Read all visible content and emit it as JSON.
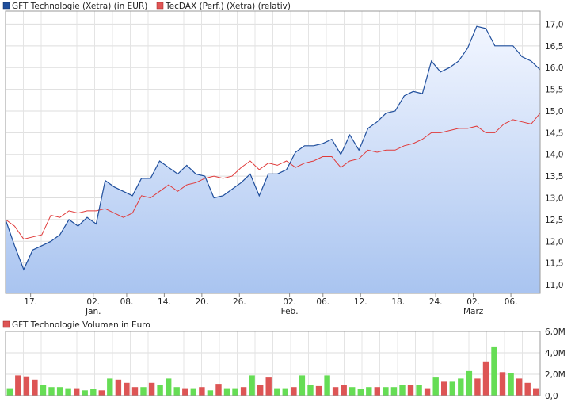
{
  "chart_data": [
    {
      "type": "line",
      "title": "",
      "legend_position": "top-left",
      "grid": true,
      "ylim": [
        10.8,
        17.3
      ],
      "yticks": [
        "11,0",
        "11,5",
        "12,0",
        "12,5",
        "13,0",
        "13,5",
        "14,0",
        "14,5",
        "15,0",
        "15,5",
        "16,0",
        "16,5",
        "17,0"
      ],
      "x_tick_labels": [
        "17.",
        "02.",
        "08.",
        "14.",
        "20.",
        "26.",
        "02.",
        "06.",
        "12.",
        "18.",
        "24.",
        "02.",
        "06."
      ],
      "month_labels": [
        "Jan.",
        "Feb.",
        "März"
      ],
      "series": [
        {
          "name": "GFT Technologie (Xetra) (in EUR)",
          "color": "#1f4e9c",
          "values": [
            12.5,
            11.9,
            11.35,
            11.8,
            11.9,
            12.0,
            12.15,
            12.5,
            12.35,
            12.55,
            12.4,
            13.4,
            13.25,
            13.15,
            13.05,
            13.45,
            13.45,
            13.85,
            13.7,
            13.55,
            13.75,
            13.55,
            13.5,
            13.0,
            13.05,
            13.2,
            13.35,
            13.55,
            13.05,
            13.55,
            13.55,
            13.65,
            14.05,
            14.2,
            14.2,
            14.25,
            14.35,
            14.0,
            14.45,
            14.1,
            14.6,
            14.75,
            14.95,
            15.0,
            15.35,
            15.45,
            15.4,
            16.15,
            15.9,
            16.0,
            16.15,
            16.45,
            16.95,
            16.9,
            16.5,
            16.5,
            16.5,
            16.25,
            16.15,
            15.95
          ]
        },
        {
          "name": "TecDAX (Perf.) (Xetra) (relativ)",
          "color": "#e03a3a",
          "values": [
            12.5,
            12.35,
            12.05,
            12.1,
            12.15,
            12.6,
            12.55,
            12.7,
            12.65,
            12.7,
            12.7,
            12.75,
            12.65,
            12.55,
            12.65,
            13.05,
            13.0,
            13.15,
            13.3,
            13.15,
            13.3,
            13.35,
            13.45,
            13.5,
            13.45,
            13.5,
            13.7,
            13.85,
            13.65,
            13.8,
            13.75,
            13.85,
            13.7,
            13.8,
            13.85,
            13.95,
            13.95,
            13.7,
            13.85,
            13.9,
            14.1,
            14.05,
            14.1,
            14.1,
            14.2,
            14.25,
            14.35,
            14.5,
            14.5,
            14.55,
            14.6,
            14.6,
            14.65,
            14.5,
            14.5,
            14.7,
            14.8,
            14.75,
            14.7,
            14.95
          ]
        }
      ]
    },
    {
      "type": "bar",
      "title": "GFT Technologie Volumen in Euro",
      "legend_position": "top-left",
      "grid": true,
      "ylim": [
        0,
        6000000
      ],
      "yticks": [
        "0,0",
        "2,0M",
        "4,0M",
        "6,0M"
      ],
      "series": [
        {
          "name": "GFT Technologie Volumen in Euro",
          "values": [
            0.7,
            1.9,
            1.8,
            1.5,
            1.0,
            0.8,
            0.8,
            0.7,
            0.7,
            0.5,
            0.6,
            0.5,
            1.6,
            1.5,
            1.2,
            0.8,
            0.8,
            1.2,
            1.0,
            1.6,
            0.8,
            0.7,
            0.7,
            0.8,
            0.5,
            1.1,
            0.7,
            0.7,
            0.8,
            1.9,
            1.0,
            1.7,
            0.7,
            0.7,
            0.8,
            1.9,
            1.0,
            0.9,
            1.9,
            0.8,
            1.0,
            0.8,
            0.6,
            0.8,
            0.8,
            0.8,
            0.8,
            1.0,
            1.0,
            1.0,
            0.7,
            1.7,
            1.3,
            1.3,
            1.6,
            2.3,
            1.6,
            3.2,
            4.6,
            2.2,
            2.1,
            1.6,
            1.2,
            0.7
          ],
          "direction": [
            "u",
            "d",
            "d",
            "d",
            "u",
            "u",
            "u",
            "u",
            "d",
            "u",
            "u",
            "d",
            "u",
            "d",
            "d",
            "d",
            "u",
            "d",
            "u",
            "u",
            "u",
            "d",
            "u",
            "d",
            "u",
            "d",
            "u",
            "u",
            "d",
            "u",
            "d",
            "d",
            "u",
            "u",
            "d",
            "u",
            "u",
            "d",
            "u",
            "d",
            "d",
            "u",
            "u",
            "u",
            "d",
            "u",
            "u",
            "u",
            "d",
            "u",
            "d",
            "u",
            "d",
            "u",
            "u",
            "u",
            "d",
            "d",
            "u",
            "d",
            "u",
            "d",
            "d",
            "d"
          ],
          "colors": {
            "up": "#66dd55",
            "down": "#dd5555",
            "neutral": "#bbbbbb"
          }
        }
      ]
    }
  ]
}
